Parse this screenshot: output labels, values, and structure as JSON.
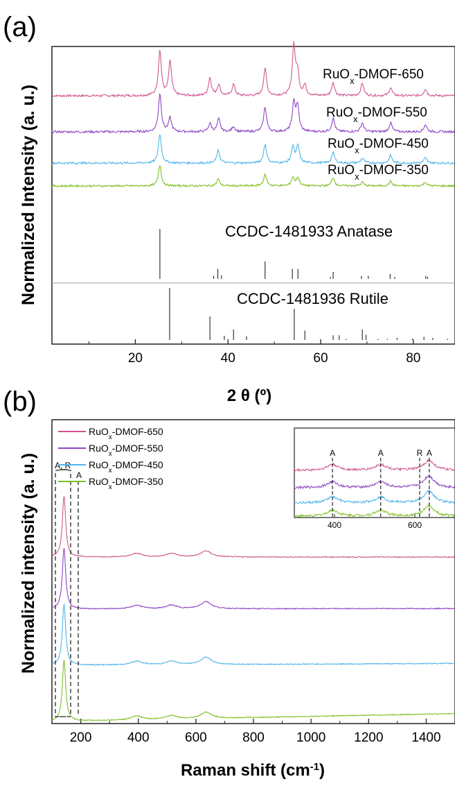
{
  "chart_data": [
    {
      "panel_label": "(a)",
      "type": "line",
      "xlabel": "2 θ (º)",
      "ylabel": "Normalized Intensity (a. u.)",
      "xlim": [
        2,
        89
      ],
      "x_ticks": [
        20,
        40,
        60,
        80
      ],
      "y_ticks": "none",
      "grid": false,
      "series": [
        {
          "name": "RuOx-DMOF-650",
          "label_main": "RuO",
          "label_sub": "x",
          "label_rest": "-DMOF-650",
          "color": "#d0558e",
          "peaks": [
            [
              25.3,
              1.0
            ],
            [
              27.5,
              0.75
            ],
            [
              36.1,
              0.4
            ],
            [
              38.0,
              0.25
            ],
            [
              41.2,
              0.25
            ],
            [
              48.0,
              0.6
            ],
            [
              54.2,
              1.1
            ],
            [
              55.0,
              0.5
            ],
            [
              56.6,
              0.22
            ],
            [
              62.7,
              0.3
            ],
            [
              69.0,
              0.28
            ],
            [
              75.1,
              0.18
            ],
            [
              82.6,
              0.15
            ]
          ]
        },
        {
          "name": "RuOx-DMOF-550",
          "label_main": "RuO",
          "label_sub": "x",
          "label_rest": "-DMOF-550",
          "color": "#8e44c4",
          "peaks": [
            [
              25.3,
              0.85
            ],
            [
              27.5,
              0.3
            ],
            [
              36.1,
              0.18
            ],
            [
              38.0,
              0.28
            ],
            [
              41.2,
              0.12
            ],
            [
              48.0,
              0.55
            ],
            [
              54.2,
              0.62
            ],
            [
              55.0,
              0.55
            ],
            [
              62.7,
              0.3
            ],
            [
              69.0,
              0.2
            ],
            [
              75.1,
              0.2
            ],
            [
              82.6,
              0.16
            ]
          ]
        },
        {
          "name": "RuOx-DMOF-450",
          "label_main": "RuO",
          "label_sub": "x",
          "label_rest": "-DMOF-450",
          "color": "#4db4ea",
          "peaks": [
            [
              25.3,
              0.7
            ],
            [
              37.9,
              0.3
            ],
            [
              48.0,
              0.45
            ],
            [
              54.0,
              0.4
            ],
            [
              55.1,
              0.4
            ],
            [
              62.7,
              0.25
            ],
            [
              69.0,
              0.12
            ],
            [
              75.1,
              0.18
            ],
            [
              82.6,
              0.12
            ]
          ]
        },
        {
          "name": "RuOx-DMOF-350",
          "label_main": "RuO",
          "label_sub": "x",
          "label_rest": "-DMOF-350",
          "color": "#7fbf23",
          "peaks": [
            [
              25.3,
              0.55
            ],
            [
              37.9,
              0.18
            ],
            [
              48.0,
              0.3
            ],
            [
              54.0,
              0.22
            ],
            [
              55.1,
              0.22
            ],
            [
              62.7,
              0.22
            ],
            [
              69.0,
              0.1
            ],
            [
              75.1,
              0.12
            ],
            [
              82.6,
              0.1
            ]
          ]
        }
      ],
      "references": [
        {
          "label": "CCDC-1481933 Anatase",
          "sticks": [
            [
              25.3,
              100
            ],
            [
              36.9,
              6
            ],
            [
              37.8,
              20
            ],
            [
              38.6,
              7
            ],
            [
              48.0,
              35
            ],
            [
              53.9,
              20
            ],
            [
              55.1,
              20
            ],
            [
              62.1,
              4
            ],
            [
              62.7,
              14
            ],
            [
              68.8,
              6
            ],
            [
              70.3,
              6
            ],
            [
              75.0,
              10
            ],
            [
              76.0,
              4
            ],
            [
              82.7,
              6
            ],
            [
              83.1,
              4
            ]
          ]
        },
        {
          "label": "CCDC-1481936 Rutile",
          "sticks": [
            [
              27.4,
              100
            ],
            [
              36.1,
              45
            ],
            [
              39.2,
              8
            ],
            [
              41.2,
              20
            ],
            [
              44.0,
              7
            ],
            [
              54.3,
              60
            ],
            [
              56.6,
              18
            ],
            [
              62.7,
              9
            ],
            [
              64.0,
              9
            ],
            [
              65.5,
              2
            ],
            [
              69.0,
              20
            ],
            [
              69.8,
              10
            ],
            [
              72.4,
              2
            ],
            [
              74.4,
              2
            ],
            [
              76.5,
              4
            ],
            [
              79.8,
              2
            ],
            [
              82.3,
              6
            ],
            [
              84.2,
              4
            ],
            [
              87.4,
              2
            ]
          ]
        }
      ]
    },
    {
      "panel_label": "(b)",
      "type": "line",
      "xlabel": "Raman shift (cm",
      "xlabel_sup": "-1",
      "xlabel_end": ")",
      "ylabel": "Normalized intensity (a. u.)",
      "xlim": [
        100,
        1500
      ],
      "x_ticks": [
        200,
        400,
        600,
        800,
        1000,
        1200,
        1400
      ],
      "y_ticks": "none",
      "grid": false,
      "legend": "top-left",
      "series": [
        {
          "name": "RuOx-DMOF-650",
          "label_main": "RuO",
          "label_sub": "x",
          "label_rest": "-DMOF-650",
          "color": "#d0558e",
          "peaks": [
            [
              142,
              1.0
            ],
            [
              395,
              0.06
            ],
            [
              515,
              0.06
            ],
            [
              635,
              0.1
            ]
          ],
          "baseline_slope": 0.0
        },
        {
          "name": "RuOx-DMOF-550",
          "label_main": "RuO",
          "label_sub": "x",
          "label_rest": "-DMOF-550",
          "color": "#8e44c4",
          "peaks": [
            [
              142,
              1.0
            ],
            [
              395,
              0.06
            ],
            [
              515,
              0.06
            ],
            [
              635,
              0.12
            ]
          ],
          "baseline_slope": 0.01
        },
        {
          "name": "RuOx-DMOF-450",
          "label_main": "RuO",
          "label_sub": "x",
          "label_rest": "-DMOF-450",
          "color": "#4db4ea",
          "peaks": [
            [
              142,
              1.0
            ],
            [
              395,
              0.06
            ],
            [
              515,
              0.06
            ],
            [
              635,
              0.12
            ]
          ],
          "baseline_slope": 0.03
        },
        {
          "name": "RuOx-DMOF-350",
          "label_main": "RuO",
          "label_sub": "x",
          "label_rest": "-DMOF-350",
          "color": "#7fbf23",
          "peaks": [
            [
              142,
              1.0
            ],
            [
              395,
              0.06
            ],
            [
              515,
              0.06
            ],
            [
              635,
              0.1
            ]
          ],
          "baseline_slope": 0.13
        }
      ],
      "annotations": [
        {
          "text": "A, R",
          "x": 143
        },
        {
          "text": "A",
          "x": 197
        }
      ],
      "inset": {
        "xlim": [
          300,
          700
        ],
        "x_ticks": [
          400,
          600
        ],
        "marker_lines": [
          {
            "text": "A",
            "x": 395
          },
          {
            "text": "A",
            "x": 515
          },
          {
            "text": "R",
            "x": 612
          },
          {
            "text": "A",
            "x": 636
          }
        ]
      }
    }
  ]
}
